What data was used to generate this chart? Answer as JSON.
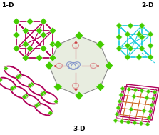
{
  "bg_color": "#ffffff",
  "center_bg": "#e8ede0",
  "center_border": "#888888",
  "label_1d": "1-D",
  "label_2d": "2-D",
  "label_3d": "3-D",
  "dark_red": "#b0005a",
  "green": "#44cc00",
  "orange": "#cc6622",
  "cyan": "#22ccdd",
  "pink_ligand": "#dd9999",
  "blue_ligand": "#8899cc",
  "label_color": "#000000"
}
